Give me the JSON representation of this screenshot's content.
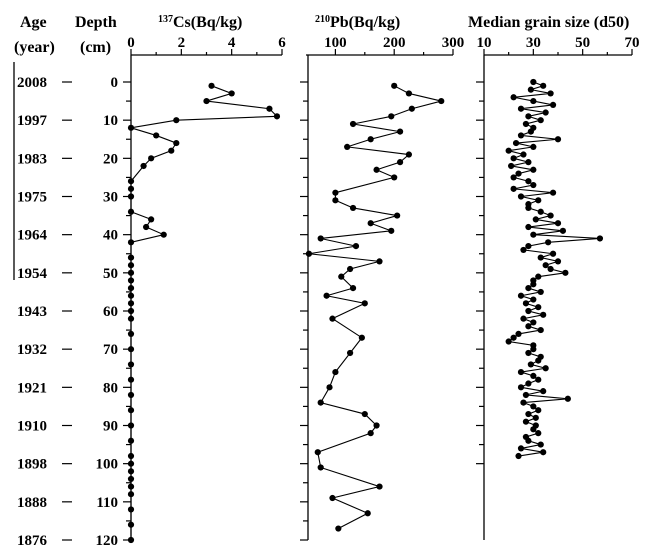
{
  "chart_data": [
    {
      "type": "line",
      "title": "137Cs(Bq/kg)",
      "title_sup": "137",
      "title_main": "Cs(Bq/kg)",
      "xlim": [
        0,
        6
      ],
      "x_ticks": [
        0,
        2,
        4,
        6
      ],
      "ylim": [
        0,
        120
      ],
      "y_ticks": [
        0,
        10,
        20,
        30,
        40,
        50,
        60,
        70,
        80,
        90,
        100,
        110,
        120
      ],
      "axis_position": "left",
      "series": [
        {
          "x": [
            3.2,
            4.0,
            3.0,
            5.5,
            5.8,
            1.8,
            0.0,
            1.0,
            1.8,
            1.6,
            0.8,
            0.5,
            0.0,
            0.0,
            0.0,
            0.0,
            0.8,
            0.6,
            1.3,
            0.0,
            0.0,
            0.0,
            0.0,
            0.0,
            0.0,
            0.0,
            0.0,
            0.0,
            0.0,
            0.0,
            0.0,
            0.0,
            0.0,
            0.0,
            0.0,
            0.0,
            0.0,
            0.0,
            0.0,
            0.0,
            0.0,
            0.0,
            0.0,
            0.0,
            0.0,
            0.0
          ],
          "y": [
            1,
            3,
            5,
            7,
            9,
            10,
            12,
            14,
            16,
            18,
            20,
            22,
            26,
            28,
            30,
            34,
            36,
            38,
            40,
            42,
            46,
            48,
            50,
            52,
            54,
            56,
            58,
            60,
            62,
            66,
            70,
            74,
            78,
            82,
            86,
            90,
            94,
            98,
            100,
            102,
            104,
            106,
            108,
            112,
            116,
            120
          ]
        }
      ]
    },
    {
      "type": "line",
      "title": "210Pb(Bq/kg)",
      "title_sup": "210",
      "title_main": "Pb(Bq/kg)",
      "xlim": [
        50,
        300
      ],
      "x_ticks": [
        100,
        200,
        300
      ],
      "ylim": [
        0,
        120
      ],
      "axis_position": "left",
      "series": [
        {
          "x": [
            200,
            225,
            280,
            230,
            195,
            130,
            210,
            160,
            120,
            225,
            210,
            170,
            200,
            100,
            100,
            130,
            205,
            160,
            195,
            75,
            135,
            55,
            175,
            125,
            110,
            130,
            85,
            150,
            95,
            145,
            125,
            100,
            90,
            75,
            150,
            170,
            160,
            70,
            75,
            175,
            95,
            155,
            105
          ],
          "y": [
            1,
            3,
            5,
            7,
            9,
            11,
            13,
            15,
            17,
            19,
            21,
            23,
            25,
            29,
            31,
            33,
            35,
            37,
            39,
            41,
            43,
            45,
            47,
            49,
            51,
            54,
            56,
            58,
            62,
            67,
            71,
            76,
            80,
            84,
            87,
            90,
            92,
            97,
            101,
            106,
            109,
            113,
            117
          ]
        }
      ]
    },
    {
      "type": "line",
      "title": "Median grain size (d50)",
      "xlim": [
        10,
        70
      ],
      "x_ticks": [
        10,
        30,
        50,
        70
      ],
      "ylim": [
        0,
        100
      ],
      "axis_position": "left",
      "series": [
        {
          "x": [
            30,
            34,
            29,
            37,
            22,
            30,
            38,
            25,
            35,
            28,
            33,
            27,
            30,
            29,
            25,
            40,
            23,
            30,
            20,
            26,
            22,
            28,
            21,
            30,
            24,
            22,
            28,
            30,
            22,
            38,
            25,
            32,
            28,
            28,
            33,
            37,
            31,
            40,
            28,
            42,
            30,
            57,
            36,
            28,
            26,
            38,
            33,
            40,
            35,
            37,
            43,
            32,
            30,
            30,
            28,
            33,
            25,
            30,
            27,
            32,
            28,
            34,
            26,
            30,
            28,
            33,
            24,
            22,
            20,
            30,
            30,
            28,
            33,
            32,
            29,
            35,
            25,
            30,
            32,
            28,
            25,
            34,
            27,
            44,
            26,
            30,
            32,
            28,
            31,
            27,
            31,
            30,
            32,
            27,
            28,
            33,
            25,
            34,
            24
          ],
          "y": [
            0,
            1,
            2,
            3,
            4,
            5,
            6,
            7,
            8,
            9,
            10,
            11,
            12,
            13,
            14,
            15,
            16,
            17,
            18,
            19,
            20,
            21,
            22,
            23,
            24,
            25,
            26,
            27,
            28,
            29,
            30,
            31,
            32,
            33,
            34,
            35,
            36,
            37,
            38,
            39,
            40,
            41,
            42,
            43,
            44,
            45,
            46,
            47,
            48,
            49,
            50,
            51,
            52,
            53,
            54,
            55,
            56,
            57,
            58,
            59,
            60,
            61,
            62,
            63,
            64,
            65,
            66,
            67,
            68,
            69,
            70,
            71,
            72,
            73,
            74,
            75,
            76,
            77,
            78,
            79,
            80,
            81,
            82,
            83,
            84,
            85,
            86,
            87,
            88,
            89,
            90,
            91,
            92,
            93,
            94,
            95,
            96,
            97,
            98
          ]
        }
      ]
    }
  ],
  "depth_header": [
    "Depth",
    "(cm)"
  ],
  "age_header": [
    "Age",
    "(year)"
  ],
  "depth_ticks": [
    "0",
    "10",
    "20",
    "30",
    "40",
    "50",
    "60",
    "70",
    "80",
    "90",
    "100",
    "110",
    "120"
  ],
  "age_labels": [
    "2008",
    "1997",
    "1983",
    "1975",
    "1964",
    "1954",
    "1943",
    "1932",
    "1921",
    "1910",
    "1898",
    "1888",
    "1876"
  ]
}
